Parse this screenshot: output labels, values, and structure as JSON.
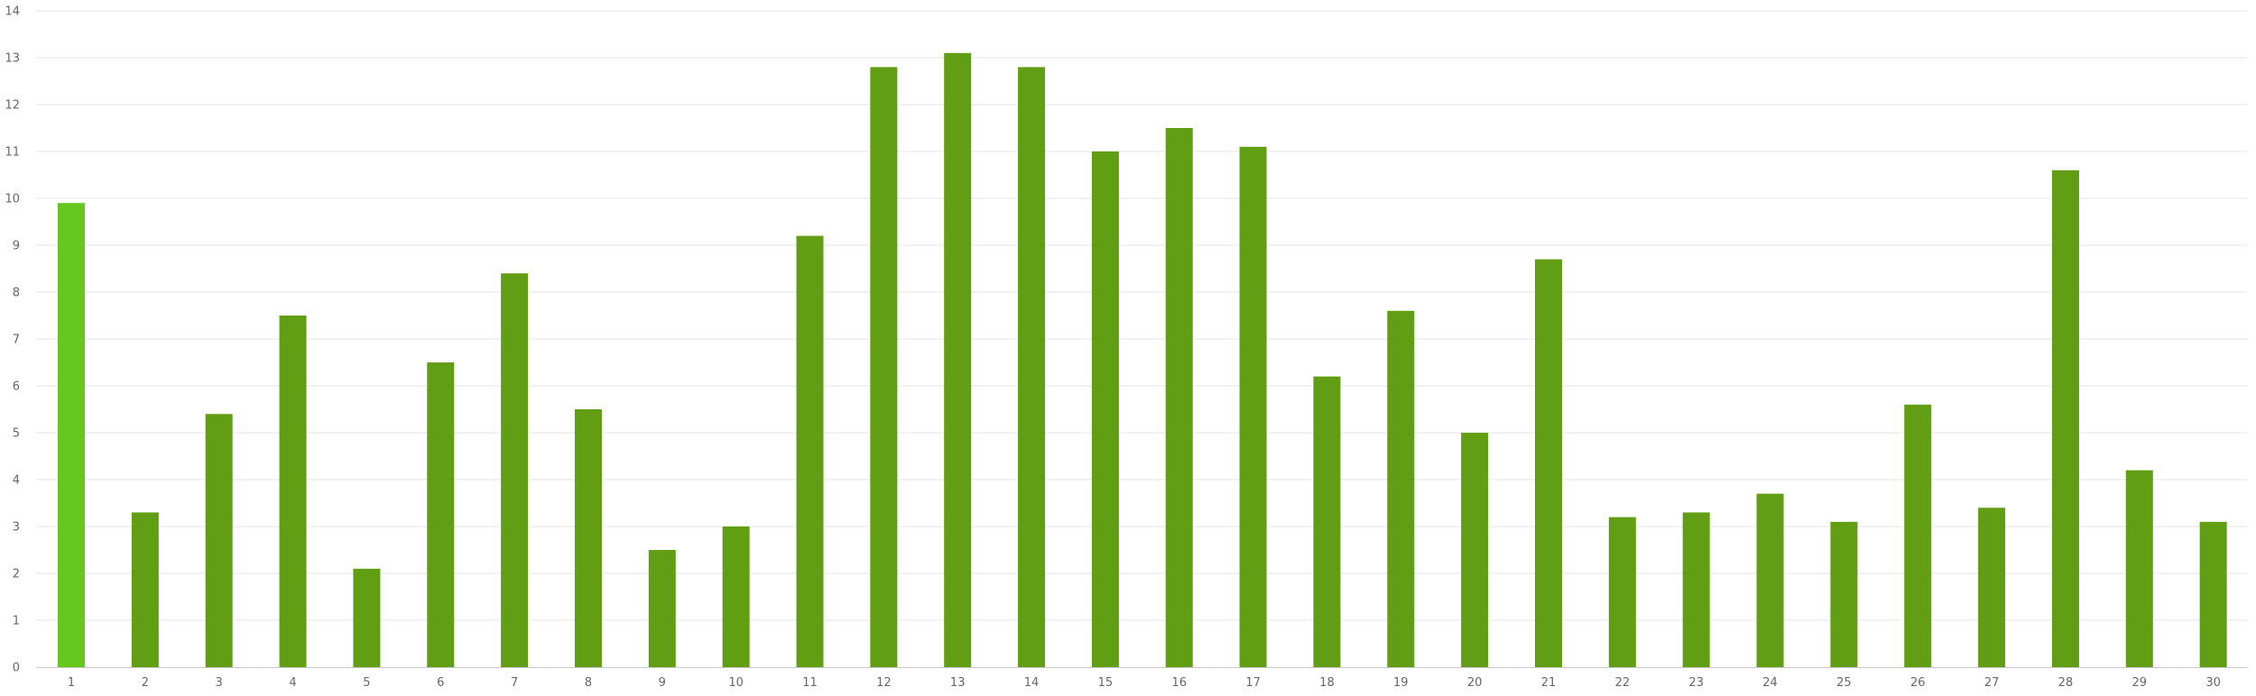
{
  "colors": {
    "bar": "#629e13",
    "highlight_bar": "#66c71f",
    "grid": "#e4e4e4",
    "tick_text": "#666666",
    "background": "#ffffff"
  },
  "chart_data": {
    "type": "bar",
    "title": "",
    "xlabel": "",
    "ylabel": "",
    "categories": [
      "1",
      "2",
      "3",
      "4",
      "5",
      "6",
      "7",
      "8",
      "9",
      "10",
      "11",
      "12",
      "13",
      "14",
      "15",
      "16",
      "17",
      "18",
      "19",
      "20",
      "21",
      "22",
      "23",
      "24",
      "25",
      "26",
      "27",
      "28",
      "29",
      "30"
    ],
    "values": [
      9.9,
      3.3,
      5.4,
      7.5,
      2.1,
      6.5,
      8.4,
      5.5,
      2.5,
      3.0,
      9.2,
      12.8,
      13.1,
      12.8,
      11.0,
      11.5,
      11.1,
      6.2,
      7.6,
      5.0,
      8.7,
      3.2,
      3.3,
      3.7,
      3.1,
      5.6,
      3.4,
      10.6,
      4.2,
      3.1
    ],
    "highlighted_category": "1",
    "ylim": [
      0,
      14
    ],
    "yticks": [
      "0",
      "1",
      "2",
      "3",
      "4",
      "5",
      "6",
      "7",
      "8",
      "9",
      "10",
      "11",
      "12",
      "13",
      "14"
    ],
    "grid": true,
    "legend": "none"
  }
}
